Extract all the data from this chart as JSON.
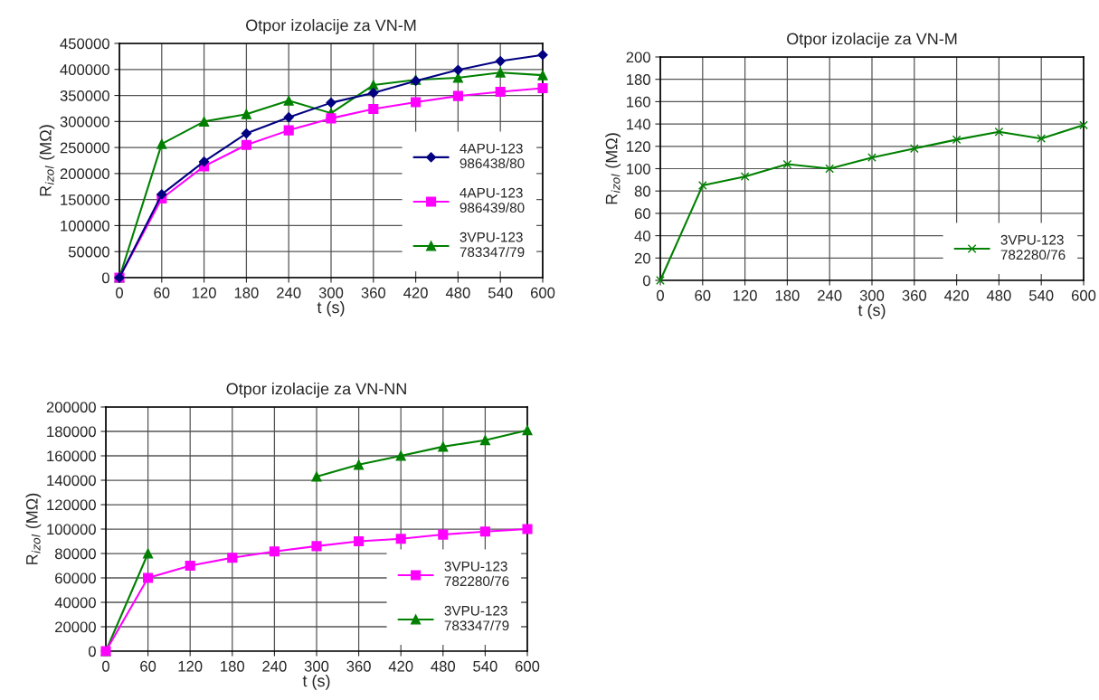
{
  "chart_data": [
    {
      "type": "line",
      "title": "Otpor izolacije za VN-M",
      "xlabel": "t (s)",
      "ylabel": "R$_{izol}$ (MΩ)",
      "x": [
        0,
        60,
        120,
        180,
        240,
        300,
        360,
        420,
        480,
        540,
        600
      ],
      "xlim": [
        0,
        600
      ],
      "xticks": [
        0,
        60,
        120,
        180,
        240,
        300,
        360,
        420,
        480,
        540,
        600
      ],
      "ylim": [
        0,
        450000
      ],
      "yticks": [
        0,
        50000,
        100000,
        150000,
        200000,
        250000,
        300000,
        350000,
        400000,
        450000
      ],
      "grid": true,
      "legend": "bottom right",
      "series": [
        {
          "name": "4APU-123\n986438/80",
          "color": "#000080",
          "marker": "diamond",
          "values": [
            0,
            160000,
            223000,
            277000,
            308000,
            336000,
            355000,
            378000,
            399000,
            416000,
            428000
          ]
        },
        {
          "name": "4APU-123\n986439/80",
          "color": "#ff00ff",
          "marker": "square",
          "values": [
            0,
            152000,
            214000,
            255000,
            283000,
            306000,
            324000,
            337000,
            349000,
            357000,
            364000
          ]
        },
        {
          "name": "3VPU-123\n783347/79",
          "color": "#008000",
          "marker": "triangle",
          "values": [
            0,
            257000,
            300000,
            314000,
            340000,
            316000,
            370000,
            380000,
            384000,
            394000,
            389000
          ]
        }
      ]
    },
    {
      "type": "line",
      "title": "Otpor izolacije za VN-M",
      "xlabel": "t (s)",
      "ylabel": "R$_{izol}$ (MΩ)",
      "x": [
        0,
        60,
        120,
        180,
        240,
        300,
        360,
        420,
        480,
        540,
        600
      ],
      "xlim": [
        0,
        600
      ],
      "xticks": [
        0,
        60,
        120,
        180,
        240,
        300,
        360,
        420,
        480,
        540,
        600
      ],
      "ylim": [
        0,
        200
      ],
      "yticks": [
        0,
        20,
        40,
        60,
        80,
        100,
        120,
        140,
        160,
        180,
        200
      ],
      "grid": true,
      "legend": "bottom right",
      "series": [
        {
          "name": "3VPU-123\n782280/76",
          "color": "#008000",
          "marker": "cross",
          "values": [
            0,
            85,
            93,
            104,
            100,
            110,
            118,
            126,
            133,
            127,
            139
          ]
        }
      ]
    },
    {
      "type": "line",
      "title": "Otpor izolacije za VN-NN",
      "xlabel": "t (s)",
      "ylabel": "R$_{izol}$ (MΩ)",
      "x": [
        0,
        60,
        120,
        180,
        240,
        300,
        360,
        420,
        480,
        540,
        600
      ],
      "xlim": [
        0,
        600
      ],
      "xticks": [
        0,
        60,
        120,
        180,
        240,
        300,
        360,
        420,
        480,
        540,
        600
      ],
      "ylim": [
        0,
        200000
      ],
      "yticks": [
        0,
        20000,
        40000,
        60000,
        80000,
        100000,
        120000,
        140000,
        160000,
        180000,
        200000
      ],
      "grid": true,
      "legend": "bottom right",
      "series": [
        {
          "name": "3VPU-123\n782280/76",
          "color": "#ff00ff",
          "marker": "square",
          "values": [
            0,
            60000,
            70000,
            76500,
            81700,
            86000,
            90000,
            92000,
            95500,
            98000,
            100000
          ]
        },
        {
          "name": "3VPU-123\n783347/79",
          "color": "#008000",
          "marker": "triangle",
          "values": [
            0,
            80000,
            null,
            null,
            null,
            143000,
            152700,
            160000,
            167500,
            172800,
            181000
          ]
        }
      ]
    }
  ]
}
